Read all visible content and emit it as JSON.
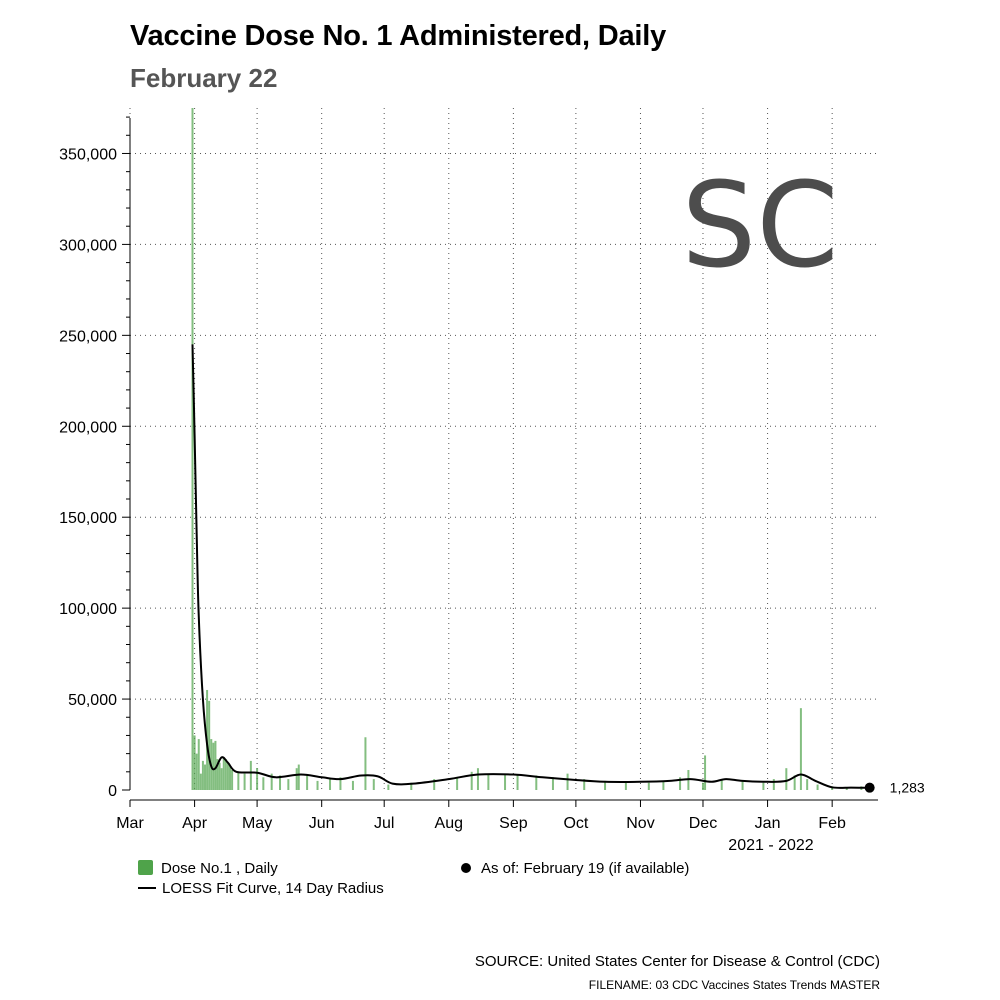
{
  "header": {
    "title": "Vaccine Dose No. 1 Administered, Daily",
    "subtitle": "February 22"
  },
  "watermark": {
    "text": "SC",
    "color": "#4d4d4d"
  },
  "legend": {
    "bars_label": "Dose No.1 , Daily",
    "curve_label": "LOESS Fit Curve, 14 Day Radius",
    "dot_label": "As of: February 19 (if available)"
  },
  "footer": {
    "source": "SOURCE: United States Center for Disease & Control (CDC)",
    "filename": "FILENAME: 03 CDC Vaccines States Trends MASTER"
  },
  "colors": {
    "bar": "#4fa34a",
    "curve": "#000000",
    "grid": "#555555"
  },
  "chart_data": {
    "type": "bar",
    "x_axis": {
      "tick_labels": [
        "Mar",
        "Apr",
        "May",
        "Jun",
        "Jul",
        "Aug",
        "Sep",
        "Oct",
        "Nov",
        "Dec",
        "Jan",
        "Feb"
      ],
      "tick_dates": [
        "2021-03-01",
        "2021-04-01",
        "2021-05-01",
        "2021-06-01",
        "2021-07-01",
        "2021-08-01",
        "2021-09-01",
        "2021-10-01",
        "2021-11-01",
        "2021-12-01",
        "2022-01-01",
        "2022-02-01"
      ],
      "range": [
        "2021-03-01",
        "2022-02-23"
      ],
      "year_label": "2021 - 2022"
    },
    "y_axis": {
      "range": [
        0,
        375000
      ],
      "ticks": [
        0,
        50000,
        100000,
        150000,
        200000,
        250000,
        300000,
        350000
      ],
      "tick_labels": [
        "0",
        "50,000",
        "100,000",
        "150,000",
        "200,000",
        "250,000",
        "300,000",
        "350,000"
      ]
    },
    "grid": true,
    "bars_series": "Dose No.1 , Daily",
    "bars": [
      [
        "2021-03-31",
        380000
      ],
      [
        "2021-04-01",
        30000
      ],
      [
        "2021-04-02",
        20000
      ],
      [
        "2021-04-03",
        28000
      ],
      [
        "2021-04-04",
        9000
      ],
      [
        "2021-04-05",
        16000
      ],
      [
        "2021-04-06",
        14000
      ],
      [
        "2021-04-07",
        55000
      ],
      [
        "2021-04-08",
        49000
      ],
      [
        "2021-04-09",
        28000
      ],
      [
        "2021-04-10",
        26000
      ],
      [
        "2021-04-11",
        27000
      ],
      [
        "2021-04-12",
        17000
      ],
      [
        "2021-04-13",
        15000
      ],
      [
        "2021-04-14",
        12000
      ],
      [
        "2021-04-15",
        18000
      ],
      [
        "2021-04-16",
        17000
      ],
      [
        "2021-04-17",
        15000
      ],
      [
        "2021-04-18",
        13000
      ],
      [
        "2021-04-19",
        11000
      ],
      [
        "2021-04-22",
        10000
      ],
      [
        "2021-04-25",
        9000
      ],
      [
        "2021-04-28",
        16000
      ],
      [
        "2021-05-01",
        12000
      ],
      [
        "2021-05-04",
        7000
      ],
      [
        "2021-05-08",
        9000
      ],
      [
        "2021-05-12",
        8000
      ],
      [
        "2021-05-16",
        6000
      ],
      [
        "2021-05-20",
        12000
      ],
      [
        "2021-05-21",
        14000
      ],
      [
        "2021-05-25",
        8000
      ],
      [
        "2021-05-30",
        5000
      ],
      [
        "2021-06-05",
        6000
      ],
      [
        "2021-06-10",
        7000
      ],
      [
        "2021-06-16",
        5000
      ],
      [
        "2021-06-22",
        29000
      ],
      [
        "2021-06-26",
        6000
      ],
      [
        "2021-07-03",
        3000
      ],
      [
        "2021-07-14",
        4000
      ],
      [
        "2021-07-25",
        6000
      ],
      [
        "2021-08-05",
        7000
      ],
      [
        "2021-08-12",
        10000
      ],
      [
        "2021-08-15",
        12000
      ],
      [
        "2021-08-20",
        9000
      ],
      [
        "2021-08-28",
        9000
      ],
      [
        "2021-09-03",
        8000
      ],
      [
        "2021-09-12",
        8000
      ],
      [
        "2021-09-20",
        7000
      ],
      [
        "2021-09-27",
        9000
      ],
      [
        "2021-10-05",
        6000
      ],
      [
        "2021-10-15",
        5000
      ],
      [
        "2021-10-25",
        4000
      ],
      [
        "2021-11-05",
        4000
      ],
      [
        "2021-11-12",
        5000
      ],
      [
        "2021-11-20",
        7000
      ],
      [
        "2021-11-24",
        11000
      ],
      [
        "2021-12-01",
        4000
      ],
      [
        "2021-12-02",
        19000
      ],
      [
        "2021-12-10",
        6000
      ],
      [
        "2021-12-20",
        5000
      ],
      [
        "2021-12-30",
        4000
      ],
      [
        "2022-01-04",
        6000
      ],
      [
        "2022-01-10",
        12000
      ],
      [
        "2022-01-14",
        8000
      ],
      [
        "2022-01-17",
        45000
      ],
      [
        "2022-01-20",
        6000
      ],
      [
        "2022-01-25",
        3000
      ],
      [
        "2022-02-01",
        2000
      ],
      [
        "2022-02-08",
        1500
      ],
      [
        "2022-02-15",
        2000
      ],
      [
        "2022-02-19",
        1283
      ]
    ],
    "curve_series": "LOESS Fit Curve, 14 Day Radius",
    "curve": [
      [
        "2021-03-31",
        245000
      ],
      [
        "2021-04-01",
        195000
      ],
      [
        "2021-04-02",
        140000
      ],
      [
        "2021-04-03",
        95000
      ],
      [
        "2021-04-05",
        50000
      ],
      [
        "2021-04-07",
        25000
      ],
      [
        "2021-04-09",
        13000
      ],
      [
        "2021-04-11",
        12000
      ],
      [
        "2021-04-14",
        18000
      ],
      [
        "2021-04-17",
        15000
      ],
      [
        "2021-04-21",
        10000
      ],
      [
        "2021-05-01",
        9500
      ],
      [
        "2021-05-10",
        7000
      ],
      [
        "2021-05-22",
        8500
      ],
      [
        "2021-06-01",
        7000
      ],
      [
        "2021-06-10",
        6000
      ],
      [
        "2021-06-20",
        8000
      ],
      [
        "2021-06-28",
        7500
      ],
      [
        "2021-07-05",
        3500
      ],
      [
        "2021-07-15",
        3500
      ],
      [
        "2021-08-01",
        6000
      ],
      [
        "2021-08-15",
        8500
      ],
      [
        "2021-09-01",
        8500
      ],
      [
        "2021-09-15",
        7000
      ],
      [
        "2021-10-01",
        5500
      ],
      [
        "2021-10-15",
        4500
      ],
      [
        "2021-11-01",
        4500
      ],
      [
        "2021-11-15",
        5000
      ],
      [
        "2021-11-25",
        6000
      ],
      [
        "2021-12-05",
        4500
      ],
      [
        "2021-12-12",
        6000
      ],
      [
        "2021-12-20",
        5000
      ],
      [
        "2022-01-01",
        4500
      ],
      [
        "2022-01-10",
        5000
      ],
      [
        "2022-01-17",
        8500
      ],
      [
        "2022-01-24",
        5000
      ],
      [
        "2022-02-01",
        1500
      ],
      [
        "2022-02-10",
        1300
      ],
      [
        "2022-02-19",
        1283
      ]
    ],
    "last_point": {
      "date": "2022-02-19",
      "value": 1283,
      "label": "1,283"
    }
  }
}
